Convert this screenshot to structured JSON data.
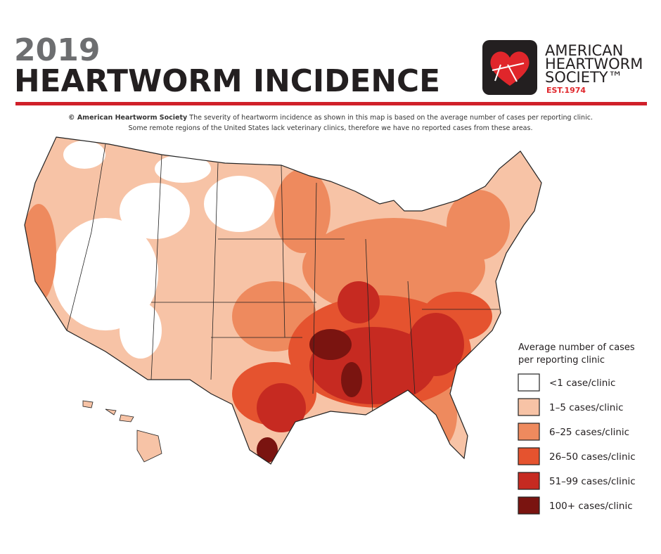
{
  "header": {
    "year": "2019",
    "title": "HEARTWORM INCIDENCE"
  },
  "logo": {
    "lines": [
      "AMERICAN",
      "HEARTWORM",
      "SOCIETY™"
    ],
    "established": "EST.1974"
  },
  "subtitle": {
    "credit": "© American Heartworm Society",
    "lines": [
      "The severity of heartworm incidence as shown in this map is based on the average number of cases per reporting clinic.",
      "Some remote regions of the United States lack veterinary clinics, therefore we have no reported cases from these areas."
    ]
  },
  "legend": {
    "title_lines": [
      "Average number of cases",
      "per reporting clinic"
    ],
    "items": [
      {
        "label": "<1 case/clinic",
        "color": "#ffffff"
      },
      {
        "label": "1–5 cases/clinic",
        "color": "#f7c3a6"
      },
      {
        "label": "6–25 cases/clinic",
        "color": "#ee8a5e"
      },
      {
        "label": "26–50 cases/clinic",
        "color": "#e5532f"
      },
      {
        "label": "51–99 cases/clinic",
        "color": "#c62a21"
      },
      {
        "label": "100+ cases/clinic",
        "color": "#7a1410"
      }
    ]
  }
}
